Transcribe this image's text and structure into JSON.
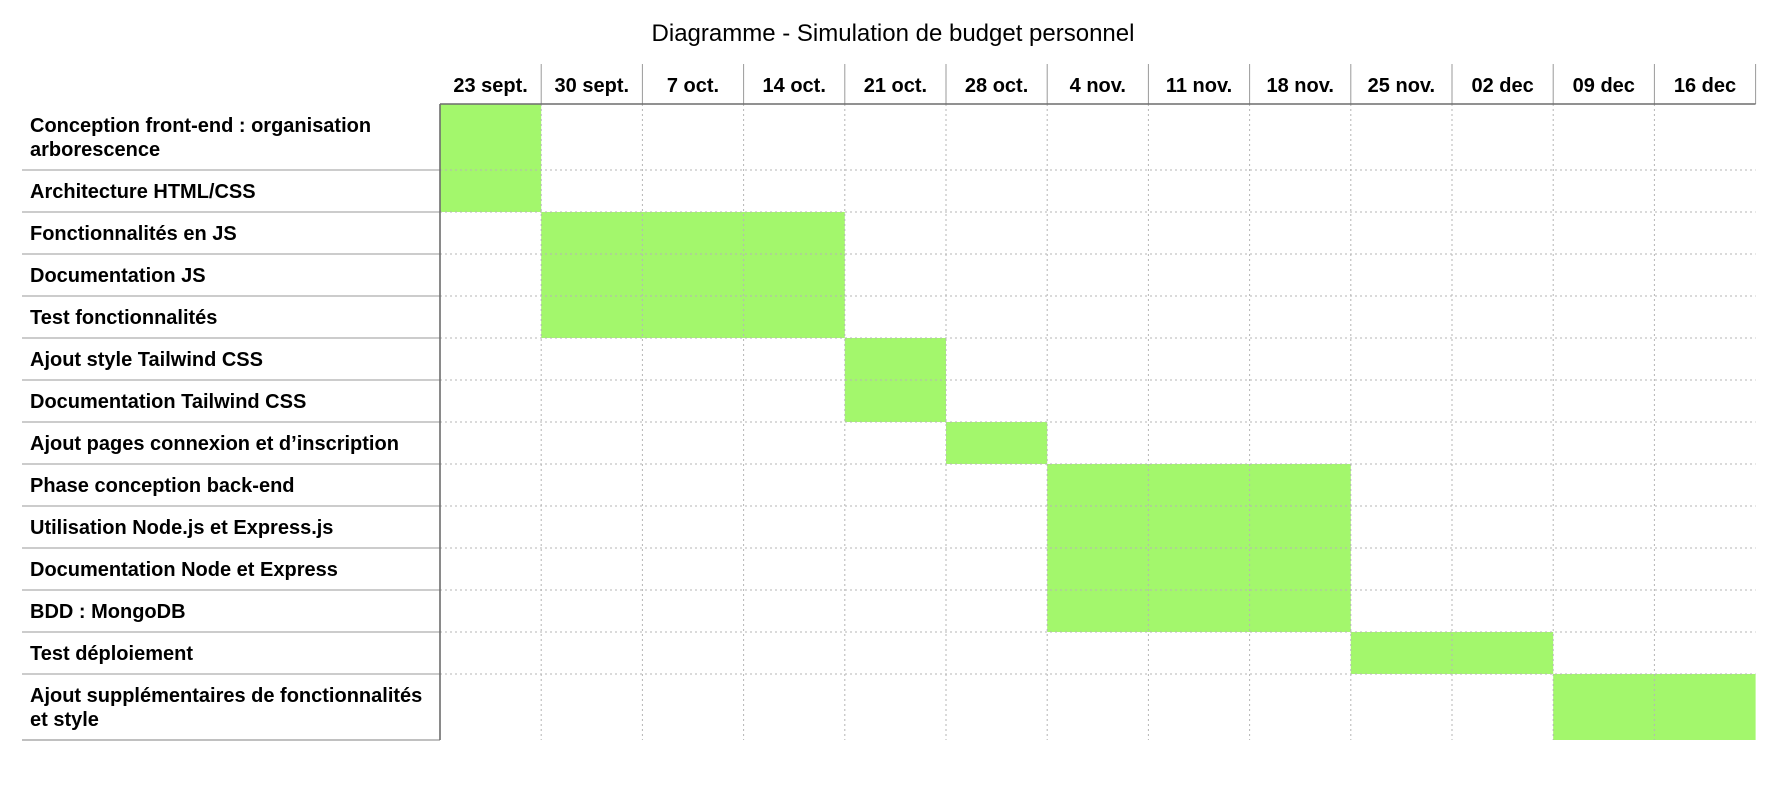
{
  "chart_data": {
    "type": "gantt",
    "title": "Diagramme - Simulation de budget personnel",
    "weeks": [
      "23 sept.",
      "30 sept.",
      "7 oct.",
      "14 oct.",
      "21 oct.",
      "28 oct.",
      "4 nov.",
      "11 nov.",
      "18 nov.",
      "25 nov.",
      "02 dec",
      "09 dec",
      "16 dec"
    ],
    "tasks": [
      {
        "label": [
          "Conception front-end : organisation",
          "arborescence"
        ],
        "start": 0,
        "span": 1
      },
      {
        "label": [
          "Architecture HTML/CSS"
        ],
        "start": 0,
        "span": 1
      },
      {
        "label": [
          "Fonctionnalités en JS"
        ],
        "start": 1,
        "span": 3
      },
      {
        "label": [
          "Documentation JS"
        ],
        "start": 1,
        "span": 3
      },
      {
        "label": [
          "Test fonctionnalités"
        ],
        "start": 1,
        "span": 3
      },
      {
        "label": [
          "Ajout style Tailwind CSS"
        ],
        "start": 4,
        "span": 1
      },
      {
        "label": [
          "Documentation Tailwind CSS"
        ],
        "start": 4,
        "span": 1
      },
      {
        "label": [
          "Ajout pages connexion et d’inscription"
        ],
        "start": 5,
        "span": 1
      },
      {
        "label": [
          "Phase conception back-end"
        ],
        "start": 6,
        "span": 3
      },
      {
        "label": [
          "Utilisation Node.js et Express.js"
        ],
        "start": 6,
        "span": 3
      },
      {
        "label": [
          "Documentation Node et Express"
        ],
        "start": 6,
        "span": 3
      },
      {
        "label": [
          "BDD : MongoDB"
        ],
        "start": 6,
        "span": 3
      },
      {
        "label": [
          "Test déploiement"
        ],
        "start": 9,
        "span": 2
      },
      {
        "label": [
          "Ajout supplémentaires de fonctionnalités",
          "et style"
        ],
        "start": 11,
        "span": 2
      }
    ],
    "bar_color": "#a3f76c"
  }
}
